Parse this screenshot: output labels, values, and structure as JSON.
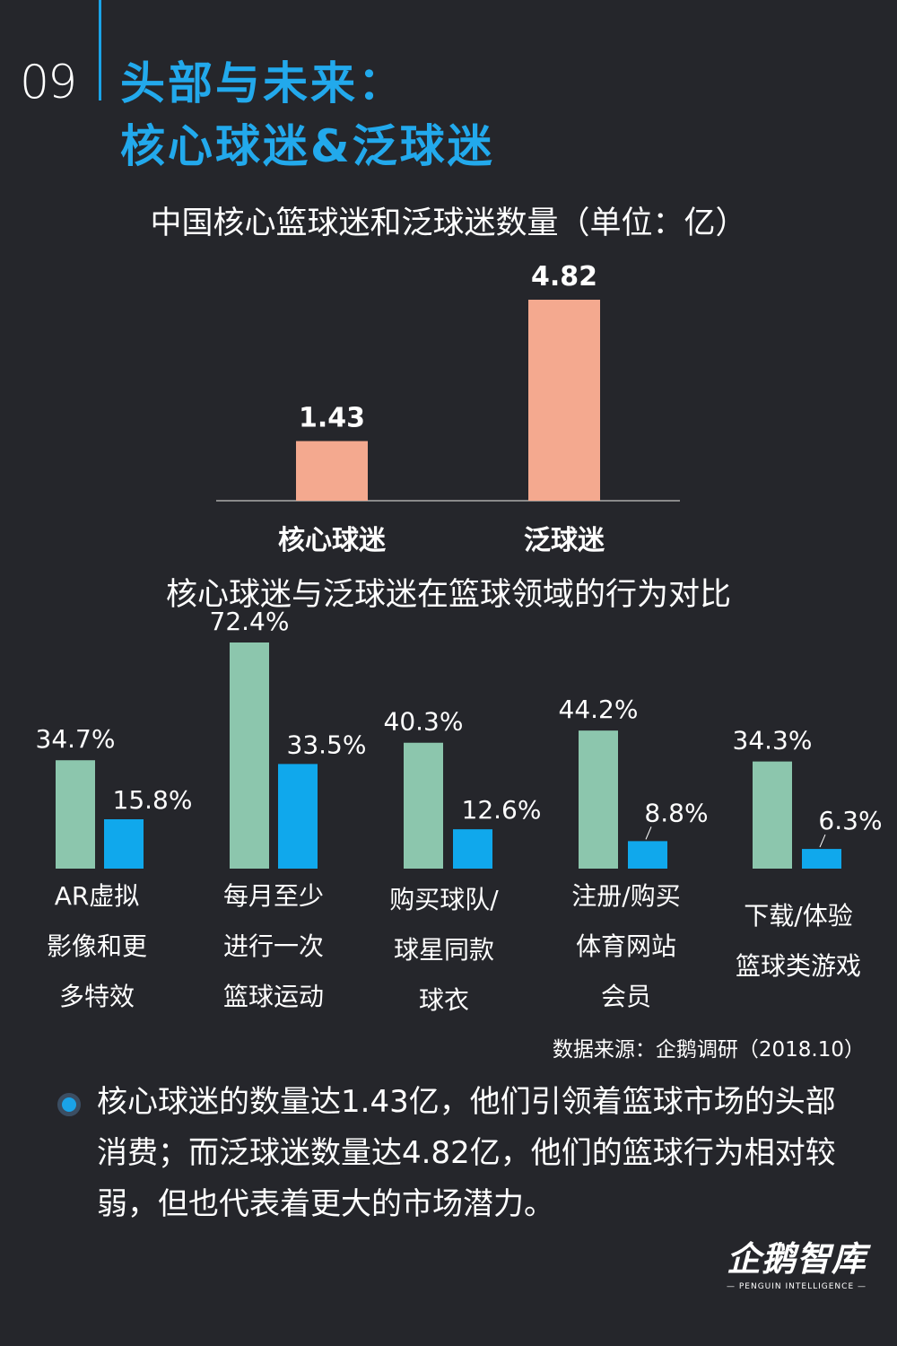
{
  "header": {
    "page_number": "09",
    "title_line1": "头部与未来：",
    "title_line2": "核心球迷&泛球迷"
  },
  "chart_data": [
    {
      "type": "bar",
      "title": "中国核心篮球迷和泛球迷数量（单位：亿）",
      "categories": [
        "核心球迷",
        "泛球迷"
      ],
      "values": [
        1.43,
        4.82
      ],
      "value_labels": [
        "1.43",
        "4.82"
      ],
      "color": "#f4a98f"
    },
    {
      "type": "bar",
      "title": "核心球迷与泛球迷在篮球领域的行为对比",
      "categories": [
        [
          "AR虚拟",
          "影像和更",
          "多特效"
        ],
        [
          "每月至少",
          "进行一次",
          "篮球运动"
        ],
        [
          "购买球队/",
          "球星同款",
          "球衣"
        ],
        [
          "注册/购买",
          "体育网站",
          "会员"
        ],
        [
          "下载/体验",
          "篮球类游戏"
        ]
      ],
      "series": [
        {
          "values": [
            34.7,
            72.4,
            40.3,
            44.2,
            34.3
          ],
          "labels": [
            "34.7%",
            "72.4%",
            "40.3%",
            "44.2%",
            "34.3%"
          ],
          "color": "#8cc6ad"
        },
        {
          "values": [
            15.8,
            33.5,
            12.6,
            8.8,
            6.3
          ],
          "labels": [
            "15.8%",
            "33.5%",
            "12.6%",
            "8.8%",
            "6.3%"
          ],
          "color": "#10a8ec"
        }
      ]
    }
  ],
  "source": "数据来源：企鹅调研（2018.10）",
  "summary": "核心球迷的数量达1.43亿，他们引领着篮球市场的头部消费；而泛球迷数量达4.82亿，他们的篮球行为相对较弱，但也代表着更大的市场潜力。",
  "logo": {
    "main": "企鹅智库",
    "sub": "— PENGUIN INTELLIGENCE —"
  }
}
